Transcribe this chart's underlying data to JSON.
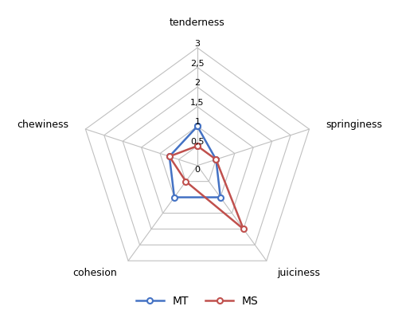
{
  "categories": [
    "tenderness",
    "springiness",
    "juiciness",
    "cohesion",
    "chewiness"
  ],
  "MT": [
    1.0,
    0.5,
    1.0,
    1.0,
    0.75
  ],
  "MS": [
    0.5,
    0.5,
    2.0,
    0.5,
    0.75
  ],
  "MT_color": "#4472C4",
  "MS_color": "#C0504D",
  "grid_color": "#C0C0C0",
  "background_color": "#FFFFFF",
  "rmax": 3.0,
  "r_ticks": [
    0.5,
    1.0,
    1.5,
    2.0,
    2.5,
    3.0
  ],
  "r_tick_labels": [
    "0,5",
    "1",
    "1,5",
    "2",
    "2,5",
    "3"
  ],
  "r_tick_label_0": "0",
  "figsize": [
    5.0,
    3.94
  ],
  "dpi": 100
}
